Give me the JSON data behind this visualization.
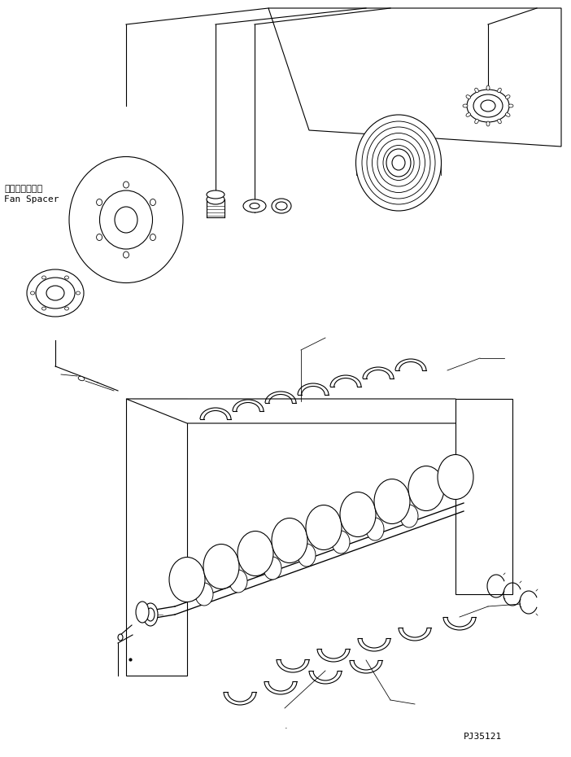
{
  "figure_width": 7.02,
  "figure_height": 9.3,
  "dpi": 100,
  "bg_color": "#ffffff",
  "line_color": "#000000",
  "text_color": "#000000",
  "part_number": "PJ35121",
  "label_japanese": "ファンスペーサ",
  "label_english": "Fan Spacer",
  "font_size_label": 8,
  "font_size_part": 8
}
